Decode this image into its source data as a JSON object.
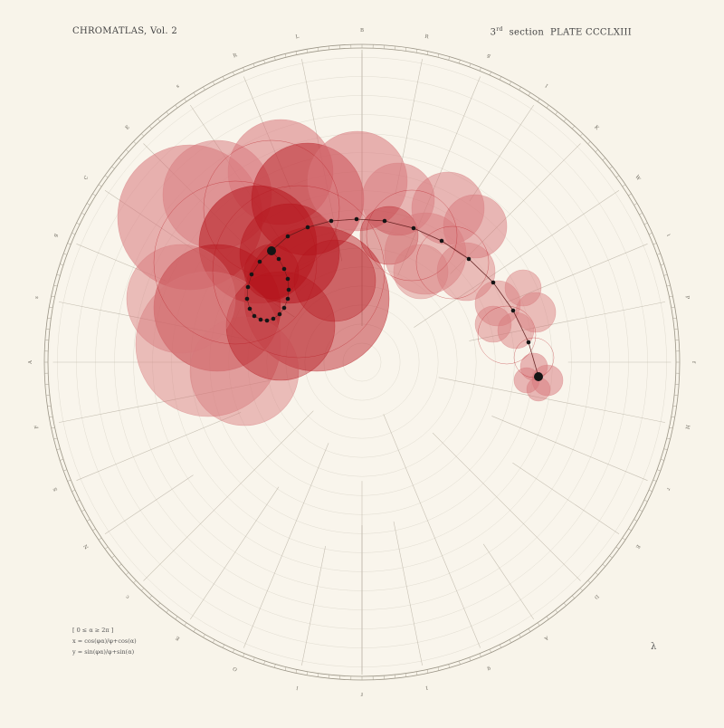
{
  "header": {
    "left_title": "CHROMATLAS, Vol. 2",
    "right_prefix": "3",
    "right_sup": "rd",
    "right_section": "section",
    "right_plate": "PLATE CCCLXIII"
  },
  "formula": {
    "line1": "[ 0 ≤ α ≥ 2π ]",
    "line2": "x = cos(φα)/φ+cos(α)",
    "line3": "y = sin(φα)/φ+sin(α)"
  },
  "corner_symbol": "λ",
  "rim_letters": [
    "B",
    "R",
    "g",
    "I",
    "K",
    "W",
    "i",
    "P",
    "f",
    "H",
    "r",
    "E",
    "D",
    "A",
    "g",
    "1",
    "f",
    "l",
    "O",
    "E",
    "c",
    "N",
    "S",
    "F",
    "A",
    "s",
    "g",
    "C",
    "E",
    "s",
    "R",
    "L"
  ],
  "colors": {
    "paper": "#f8f4ea",
    "crimson": "#b5141c",
    "rose": "#d8777b",
    "dot": "#151515",
    "line": "#b9b2a4"
  }
}
